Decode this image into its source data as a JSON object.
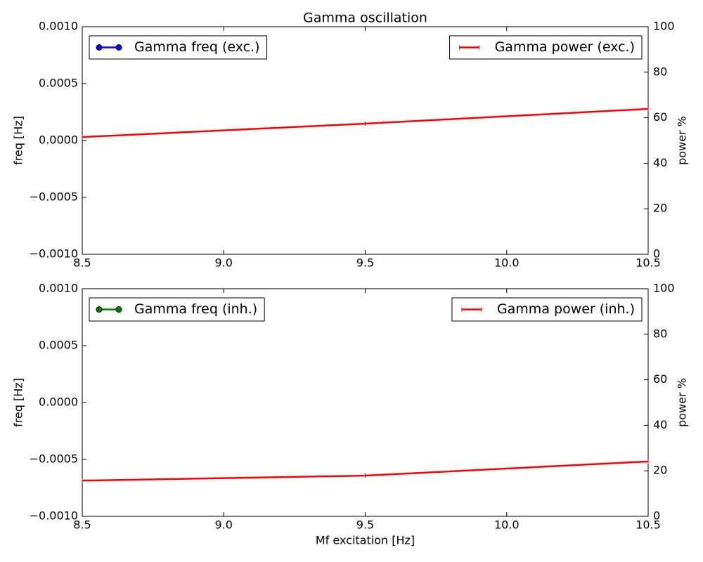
{
  "chart_data": [
    {
      "type": "line",
      "title": "Gamma oscillation",
      "x": [
        8.5,
        9.5,
        10.5
      ],
      "xlim": [
        8.5,
        10.5
      ],
      "xticks": [
        8.5,
        {
          "value": 9,
          "label": "9.0"
        },
        9.5,
        {
          "value": 10,
          "label": "10.0"
        },
        10.5
      ],
      "ylabel": "freq [Hz]",
      "y2label": "power %",
      "ylim": [
        -0.001,
        0.001
      ],
      "yticks": [
        {
          "value": -0.001,
          "label": "−0.0010"
        },
        {
          "value": -0.0005,
          "label": "−0.0005"
        },
        {
          "value": 0,
          "label": "0.0000"
        },
        {
          "value": 0.0005,
          "label": "0.0005"
        },
        {
          "value": 0.001,
          "label": "0.0010"
        }
      ],
      "y2lim": [
        0,
        100
      ],
      "y2ticks": [
        0,
        20,
        40,
        60,
        80,
        100
      ],
      "series": [
        {
          "name": "Gamma freq (exc.)",
          "color": "#0000ff",
          "marker": "o",
          "legend": "upper left",
          "values": [
            null,
            null,
            null
          ]
        },
        {
          "name": "Gamma power (exc.)",
          "color": "#ff0000",
          "axis": "y2",
          "legend": "upper right",
          "values": [
            51.5,
            57.4,
            63.9
          ]
        }
      ]
    },
    {
      "type": "line",
      "xlabel": "Mf excitation [Hz]",
      "x": [
        8.5,
        9.5,
        10.5
      ],
      "xlim": [
        8.5,
        10.5
      ],
      "xticks": [
        8.5,
        {
          "value": 9,
          "label": "9.0"
        },
        9.5,
        {
          "value": 10,
          "label": "10.0"
        },
        10.5
      ],
      "ylabel": "freq [Hz]",
      "y2label": "power %",
      "ylim": [
        -0.001,
        0.001
      ],
      "yticks": [
        {
          "value": -0.001,
          "label": "−0.0010"
        },
        {
          "value": -0.0005,
          "label": "−0.0005"
        },
        {
          "value": 0,
          "label": "0.0000"
        },
        {
          "value": 0.0005,
          "label": "0.0005"
        },
        {
          "value": 0.001,
          "label": "0.0010"
        }
      ],
      "y2lim": [
        0,
        100
      ],
      "y2ticks": [
        0,
        20,
        40,
        60,
        80,
        100
      ],
      "series": [
        {
          "name": "Gamma freq (inh.)",
          "color": "#008000",
          "marker": "o",
          "legend": "upper left",
          "values": [
            null,
            null,
            null
          ]
        },
        {
          "name": "Gamma power (inh.)",
          "color": "#ff0000",
          "axis": "y2",
          "legend": "upper right",
          "values": [
            15.7,
            17.9,
            24.1
          ]
        }
      ]
    }
  ]
}
